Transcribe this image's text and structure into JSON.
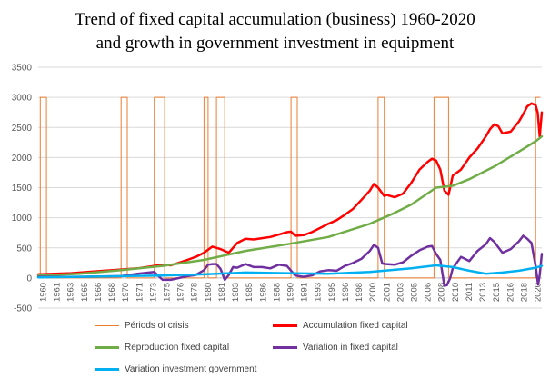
{
  "chart_data": {
    "type": "line",
    "title_line1": "Trend of  fixed capital accumulation (business) 1960-2020",
    "title_line2": "and growth in government investment in equipment",
    "ylim": [
      -500,
      3500
    ],
    "yticks": [
      "-500",
      "0",
      "500",
      "1000",
      "1500",
      "2000",
      "2500",
      "3000",
      "3500"
    ],
    "ytick_values": [
      -500,
      0,
      500,
      1000,
      1500,
      2000,
      2500,
      3000,
      3500
    ],
    "xlim": [
      1960,
      2020.75
    ],
    "xtick_labels": [
      "1960",
      "1961",
      "1963",
      "1965",
      "1966",
      "1968",
      "1970",
      "1971",
      "1973",
      "1975",
      "1976",
      "1978",
      "1980",
      "1981",
      "1983",
      "1985",
      "1986",
      "1988",
      "1990",
      "1991",
      "1993",
      "1995",
      "1996",
      "1998",
      "2000",
      "2001",
      "2003",
      "2005",
      "2006",
      "2008",
      "2010",
      "2011",
      "2013",
      "2015",
      "2016",
      "2018",
      "2020"
    ],
    "grid": "horizontal",
    "legend_position": "bottom",
    "series": [
      {
        "name": "Périods of crisis",
        "color": "#ED7D31",
        "width": 1,
        "x": [
          1960,
          1960.25,
          1960.25,
          1961,
          1961,
          1970,
          1970,
          1970.75,
          1970.75,
          1974,
          1974,
          1975.25,
          1975.25,
          1980,
          1980,
          1980.5,
          1980.5,
          1981.5,
          1981.5,
          1982.5,
          1982.5,
          1990.5,
          1990.5,
          1991.25,
          1991.25,
          2001,
          2001,
          2001.75,
          2001.75,
          2007.75,
          2007.75,
          2009.5,
          2009.5,
          2020,
          2020,
          2020.5
        ],
        "y": [
          0,
          0,
          3000,
          3000,
          0,
          0,
          3000,
          3000,
          0,
          0,
          3000,
          3000,
          0,
          0,
          3000,
          3000,
          0,
          0,
          3000,
          3000,
          0,
          0,
          3000,
          3000,
          0,
          0,
          3000,
          3000,
          0,
          0,
          3000,
          3000,
          0,
          0,
          3000,
          3000
        ]
      },
      {
        "name": "Accumulation fixed capital",
        "color": "#FF0000",
        "width": 2.5,
        "x": [
          1960,
          1962,
          1964,
          1966,
          1968,
          1970,
          1972,
          1974,
          1975,
          1976,
          1978,
          1979,
          1980,
          1981,
          1982,
          1983,
          1984,
          1985,
          1986,
          1987,
          1988,
          1989,
          1990,
          1990.5,
          1991,
          1992,
          1993,
          1994,
          1995,
          1996,
          1997,
          1998,
          1999,
          2000,
          2000.5,
          2001,
          2001.75,
          2002,
          2003,
          2004,
          2005,
          2006,
          2007,
          2007.5,
          2008,
          2008.5,
          2009,
          2009.5,
          2010,
          2011,
          2012,
          2013,
          2014,
          2014.5,
          2015,
          2015.5,
          2016,
          2017,
          2018,
          2018.5,
          2019,
          2019.5,
          2020,
          2020.25,
          2020.5,
          2020.75
        ],
        "y": [
          60,
          70,
          80,
          100,
          120,
          140,
          160,
          200,
          220,
          210,
          300,
          350,
          420,
          520,
          480,
          420,
          580,
          650,
          640,
          660,
          680,
          720,
          760,
          770,
          700,
          710,
          760,
          830,
          900,
          960,
          1050,
          1150,
          1300,
          1450,
          1560,
          1500,
          1360,
          1380,
          1340,
          1400,
          1580,
          1800,
          1930,
          1980,
          1950,
          1800,
          1450,
          1380,
          1700,
          1800,
          2000,
          2150,
          2350,
          2470,
          2550,
          2520,
          2400,
          2430,
          2600,
          2720,
          2850,
          2900,
          2870,
          2750,
          2350,
          2750
        ]
      },
      {
        "name": "Reproduction fixed capital",
        "color": "#70AD47",
        "width": 2.5,
        "x": [
          1960,
          1965,
          1970,
          1975,
          1980,
          1985,
          1990,
          1995,
          2000,
          2003,
          2005,
          2008,
          2010,
          2012,
          2015,
          2018,
          2020,
          2020.75
        ],
        "y": [
          40,
          70,
          130,
          200,
          300,
          450,
          560,
          680,
          900,
          1080,
          1220,
          1500,
          1530,
          1640,
          1850,
          2100,
          2270,
          2350
        ]
      },
      {
        "name": "Variation in fixed capital",
        "color": "#7030A0",
        "width": 2.5,
        "x": [
          1960,
          1965,
          1970,
          1972,
          1974,
          1975,
          1976,
          1978,
          1979,
          1980,
          1980.5,
          1981,
          1981.5,
          1982,
          1982.5,
          1983,
          1983.5,
          1984,
          1985,
          1986,
          1987,
          1988,
          1989,
          1990,
          1991,
          1992,
          1993,
          1994,
          1995,
          1996,
          1997,
          1998,
          1999,
          2000,
          2000.5,
          2001,
          2001.5,
          2002,
          2003,
          2004,
          2005,
          2006,
          2007,
          2007.5,
          2008,
          2008.5,
          2009,
          2009.3,
          2009.7,
          2010,
          2011,
          2012,
          2013,
          2014,
          2014.5,
          2015,
          2016,
          2017,
          2018,
          2018.5,
          2019,
          2019.5,
          2020,
          2020.3,
          2020.5,
          2020.75
        ],
        "y": [
          20,
          20,
          30,
          70,
          100,
          -30,
          -30,
          30,
          50,
          130,
          220,
          230,
          230,
          150,
          -30,
          50,
          180,
          170,
          230,
          180,
          180,
          160,
          220,
          200,
          40,
          20,
          40,
          110,
          130,
          120,
          200,
          250,
          320,
          450,
          550,
          500,
          240,
          230,
          220,
          260,
          370,
          460,
          520,
          530,
          400,
          300,
          -130,
          -120,
          0,
          160,
          350,
          280,
          450,
          560,
          660,
          600,
          420,
          480,
          610,
          700,
          650,
          580,
          200,
          -110,
          50,
          400
        ]
      },
      {
        "name": "Variation investment government",
        "color": "#00B0F0",
        "width": 2.5,
        "x": [
          1960,
          1965,
          1970,
          1975,
          1980,
          1985,
          1990,
          1995,
          2000,
          2005,
          2008,
          2010,
          2012,
          2014,
          2016,
          2018,
          2020,
          2020.75
        ],
        "y": [
          10,
          20,
          30,
          40,
          60,
          90,
          80,
          70,
          100,
          160,
          210,
          180,
          120,
          70,
          90,
          120,
          170,
          200
        ]
      }
    ]
  }
}
